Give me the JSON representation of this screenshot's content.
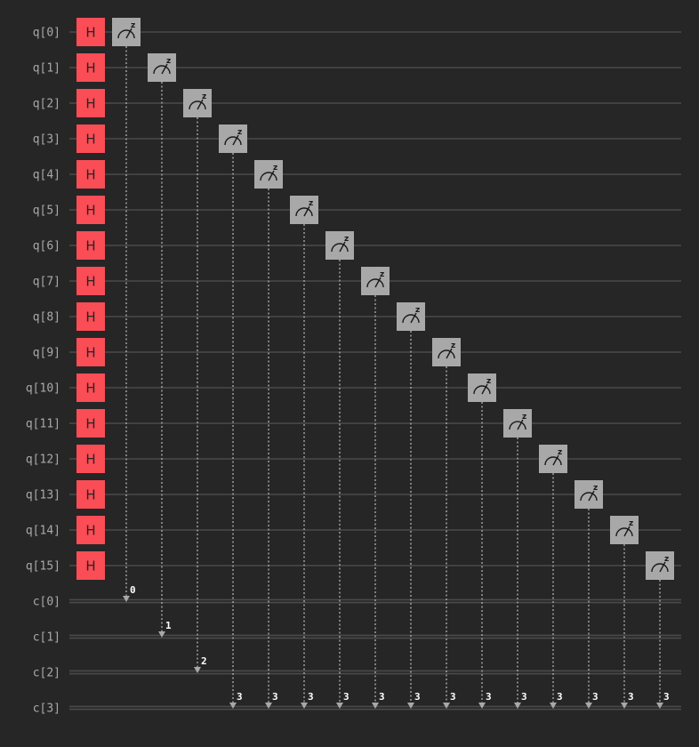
{
  "qubits": [
    "q[0]",
    "q[1]",
    "q[2]",
    "q[3]",
    "q[4]",
    "q[5]",
    "q[6]",
    "q[7]",
    "q[8]",
    "q[9]",
    "q[10]",
    "q[11]",
    "q[12]",
    "q[13]",
    "q[14]",
    "q[15]"
  ],
  "clbits": [
    "c[0]",
    "c[1]",
    "c[2]",
    "c[3]"
  ],
  "gate_label": "H",
  "measure_label": "z",
  "measurements": [
    {
      "qubit": 0,
      "clbit": 0,
      "label": "0"
    },
    {
      "qubit": 1,
      "clbit": 1,
      "label": "1"
    },
    {
      "qubit": 2,
      "clbit": 2,
      "label": "2"
    },
    {
      "qubit": 3,
      "clbit": 3,
      "label": "3"
    },
    {
      "qubit": 4,
      "clbit": 3,
      "label": "3"
    },
    {
      "qubit": 5,
      "clbit": 3,
      "label": "3"
    },
    {
      "qubit": 6,
      "clbit": 3,
      "label": "3"
    },
    {
      "qubit": 7,
      "clbit": 3,
      "label": "3"
    },
    {
      "qubit": 8,
      "clbit": 3,
      "label": "3"
    },
    {
      "qubit": 9,
      "clbit": 3,
      "label": "3"
    },
    {
      "qubit": 10,
      "clbit": 3,
      "label": "3"
    },
    {
      "qubit": 11,
      "clbit": 3,
      "label": "3"
    },
    {
      "qubit": 12,
      "clbit": 3,
      "label": "3"
    },
    {
      "qubit": 13,
      "clbit": 3,
      "label": "3"
    },
    {
      "qubit": 14,
      "clbit": 3,
      "label": "3"
    },
    {
      "qubit": 15,
      "clbit": 3,
      "label": "3"
    }
  ],
  "colors": {
    "background": "#262626",
    "wire": "#4a4a4a",
    "hadamard": "#fa4d56",
    "measure": "#a8a8a8",
    "label": "#a9a9a9"
  }
}
